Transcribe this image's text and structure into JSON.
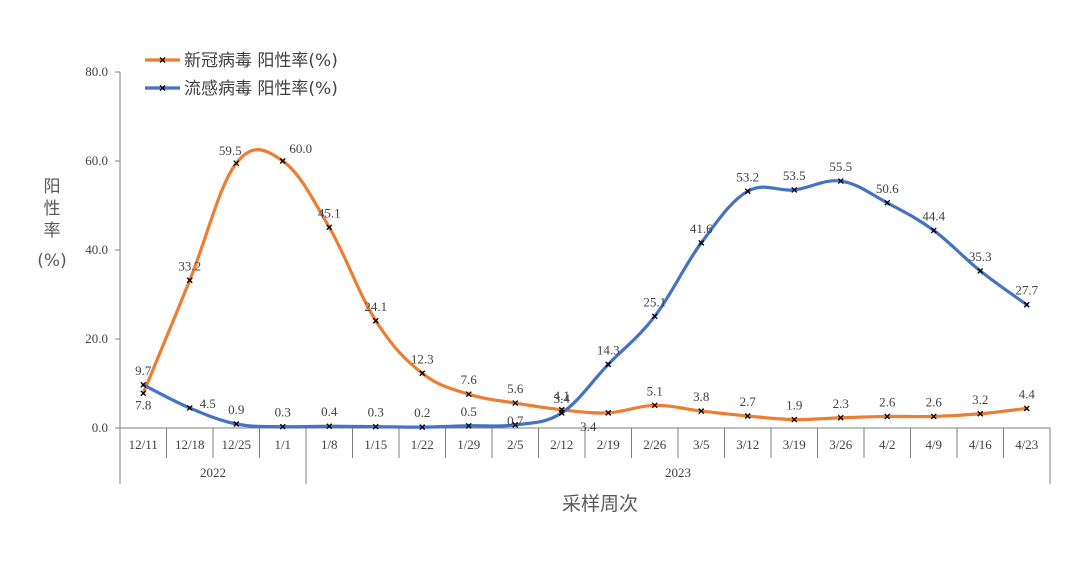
{
  "chart_data": {
    "type": "line",
    "xlabel": "采样周次",
    "ylabel": "阳性率(%)",
    "ylim": [
      0,
      80
    ],
    "yticks": [
      "0.0",
      "20.0",
      "40.0",
      "60.0",
      "80.0"
    ],
    "categories": [
      "12/11",
      "12/18",
      "12/25",
      "1/1",
      "1/8",
      "1/15",
      "1/22",
      "1/29",
      "2/5",
      "2/12",
      "2/19",
      "2/26",
      "3/5",
      "3/12",
      "3/19",
      "3/26",
      "4/2",
      "4/9",
      "4/16",
      "4/23"
    ],
    "year_groups": [
      {
        "label": "2022",
        "start": 0,
        "end": 3
      },
      {
        "label": "2023",
        "start": 4,
        "end": 19
      }
    ],
    "legend_position": "top-left",
    "series": [
      {
        "name": "新冠病毒 阳性率(%)",
        "color": "#ED7D31",
        "values": [
          7.8,
          33.2,
          59.5,
          60.0,
          45.1,
          24.1,
          12.3,
          7.6,
          5.6,
          4.1,
          3.4,
          5.1,
          3.8,
          2.7,
          1.9,
          2.3,
          2.6,
          2.6,
          3.2,
          4.4
        ],
        "labels": [
          "7.8",
          "33.2",
          "59.5",
          "60.0",
          "45.1",
          "24.1",
          "12.3",
          "7.6",
          "5.6",
          "4.1",
          "3.4",
          "5.1",
          "3.8",
          "2.7",
          "1.9",
          "2.3",
          "2.6",
          "2.6",
          "3.2",
          "4.4"
        ]
      },
      {
        "name": "流感病毒 阳性率(%)",
        "color": "#4472C4",
        "values": [
          9.7,
          4.5,
          0.9,
          0.3,
          0.4,
          0.3,
          0.2,
          0.5,
          0.7,
          3.4,
          14.3,
          25.1,
          41.6,
          53.2,
          53.5,
          55.5,
          50.6,
          44.4,
          35.3,
          27.7
        ],
        "labels": [
          "9.7",
          "4.5",
          "0.9",
          "0.3",
          "0.4",
          "0.3",
          "0.2",
          "0.5",
          "0.7",
          "3.4",
          "14.3",
          "25.1",
          "41.6",
          "53.2",
          "53.5",
          "55.5",
          "50.6",
          "44.4",
          "35.3",
          "27.7"
        ]
      }
    ]
  }
}
